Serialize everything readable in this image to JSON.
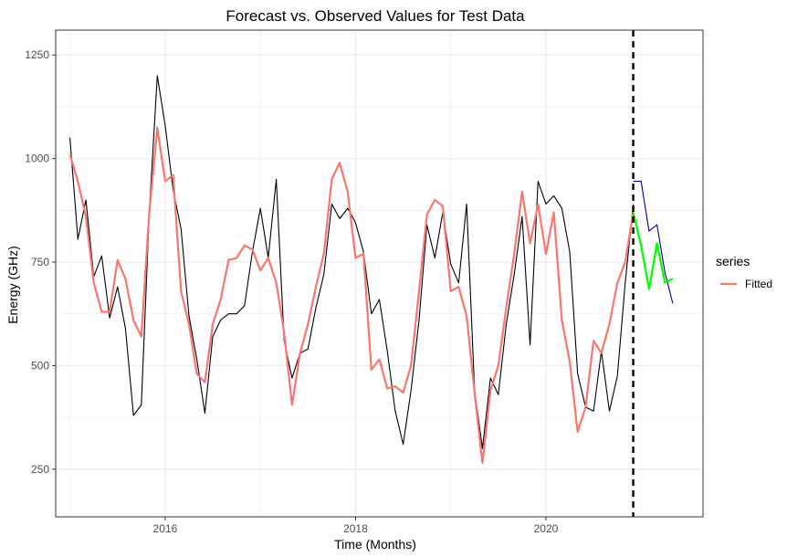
{
  "chart_data": {
    "type": "line",
    "title": "Forecast vs. Observed Values for Test Data",
    "xlabel": "Time (Months)",
    "ylabel": "Energy (GHz)",
    "xlim": [
      2014.85,
      2021.65
    ],
    "ylim": [
      135,
      1310
    ],
    "x_ticks": [
      2016,
      2018,
      2020
    ],
    "x_tick_labels": [
      "2016",
      "2018",
      "2020"
    ],
    "y_ticks": [
      250,
      500,
      750,
      1000,
      1250
    ],
    "y_tick_labels": [
      "250",
      "500",
      "750",
      "1000",
      "1250"
    ],
    "grid": true,
    "vline": {
      "x": 2020.917,
      "style": "dashed",
      "color": "#000000"
    },
    "legend": {
      "title": "series",
      "position": "right",
      "entries": [
        {
          "label": "Fitted",
          "color": "#F8766D"
        }
      ]
    },
    "series": [
      {
        "key": "observed",
        "color": "#000000",
        "x": [
          2015.0,
          2015.083,
          2015.167,
          2015.25,
          2015.333,
          2015.417,
          2015.5,
          2015.583,
          2015.667,
          2015.75,
          2015.833,
          2015.917,
          2016.0,
          2016.083,
          2016.167,
          2016.25,
          2016.333,
          2016.417,
          2016.5,
          2016.583,
          2016.667,
          2016.75,
          2016.833,
          2016.917,
          2017.0,
          2017.083,
          2017.167,
          2017.25,
          2017.333,
          2017.417,
          2017.5,
          2017.583,
          2017.667,
          2017.75,
          2017.833,
          2017.917,
          2018.0,
          2018.083,
          2018.167,
          2018.25,
          2018.333,
          2018.417,
          2018.5,
          2018.583,
          2018.667,
          2018.75,
          2018.833,
          2018.917,
          2019.0,
          2019.083,
          2019.167,
          2019.25,
          2019.333,
          2019.417,
          2019.5,
          2019.583,
          2019.667,
          2019.75,
          2019.833,
          2019.917,
          2020.0,
          2020.083,
          2020.167,
          2020.25,
          2020.333,
          2020.417,
          2020.5,
          2020.583,
          2020.667,
          2020.75,
          2020.833,
          2020.917
        ],
        "values": [
          1050,
          805,
          900,
          715,
          765,
          615,
          690,
          590,
          380,
          405,
          870,
          1200,
          1080,
          925,
          830,
          620,
          515,
          385,
          570,
          610,
          625,
          625,
          645,
          775,
          880,
          760,
          950,
          560,
          470,
          530,
          540,
          640,
          720,
          890,
          855,
          880,
          845,
          775,
          625,
          660,
          535,
          390,
          310,
          440,
          610,
          840,
          760,
          870,
          745,
          700,
          890,
          440,
          300,
          470,
          430,
          600,
          720,
          860,
          550,
          945,
          890,
          910,
          880,
          775,
          480,
          400,
          390,
          535,
          390,
          475,
          700,
          890
        ]
      },
      {
        "key": "fitted",
        "name": "Fitted",
        "color": "#F8766D",
        "x": [
          2015.0,
          2015.083,
          2015.167,
          2015.25,
          2015.333,
          2015.417,
          2015.5,
          2015.583,
          2015.667,
          2015.75,
          2015.833,
          2015.917,
          2016.0,
          2016.083,
          2016.167,
          2016.25,
          2016.333,
          2016.417,
          2016.5,
          2016.583,
          2016.667,
          2016.75,
          2016.833,
          2016.917,
          2017.0,
          2017.083,
          2017.167,
          2017.25,
          2017.333,
          2017.417,
          2017.5,
          2017.583,
          2017.667,
          2017.75,
          2017.833,
          2017.917,
          2018.0,
          2018.083,
          2018.167,
          2018.25,
          2018.333,
          2018.417,
          2018.5,
          2018.583,
          2018.667,
          2018.75,
          2018.833,
          2018.917,
          2019.0,
          2019.083,
          2019.167,
          2019.25,
          2019.333,
          2019.417,
          2019.5,
          2019.583,
          2019.667,
          2019.75,
          2019.833,
          2019.917,
          2020.0,
          2020.083,
          2020.167,
          2020.25,
          2020.333,
          2020.417,
          2020.5,
          2020.583,
          2020.667,
          2020.75,
          2020.833,
          2020.917
        ],
        "values": [
          1010,
          945,
          860,
          700,
          630,
          630,
          755,
          710,
          610,
          570,
          870,
          1075,
          945,
          960,
          680,
          600,
          480,
          460,
          600,
          660,
          755,
          760,
          790,
          780,
          730,
          760,
          700,
          580,
          405,
          530,
          600,
          690,
          770,
          950,
          990,
          920,
          760,
          770,
          490,
          515,
          445,
          450,
          435,
          500,
          680,
          865,
          900,
          885,
          680,
          690,
          620,
          435,
          265,
          440,
          500,
          640,
          770,
          920,
          795,
          890,
          770,
          870,
          610,
          510,
          340,
          400,
          560,
          530,
          600,
          700,
          750,
          870
        ]
      },
      {
        "key": "observed-test",
        "color": "#00008B",
        "x": [
          2020.917,
          2021.0,
          2021.083,
          2021.167,
          2021.25,
          2021.333
        ],
        "values": [
          945,
          945,
          825,
          840,
          725,
          650
        ]
      },
      {
        "key": "forecast",
        "color": "#00FF00",
        "x": [
          2020.917,
          2021.0,
          2021.083,
          2021.167,
          2021.25,
          2021.333
        ],
        "values": [
          870,
          790,
          685,
          795,
          700,
          710
        ]
      }
    ]
  }
}
